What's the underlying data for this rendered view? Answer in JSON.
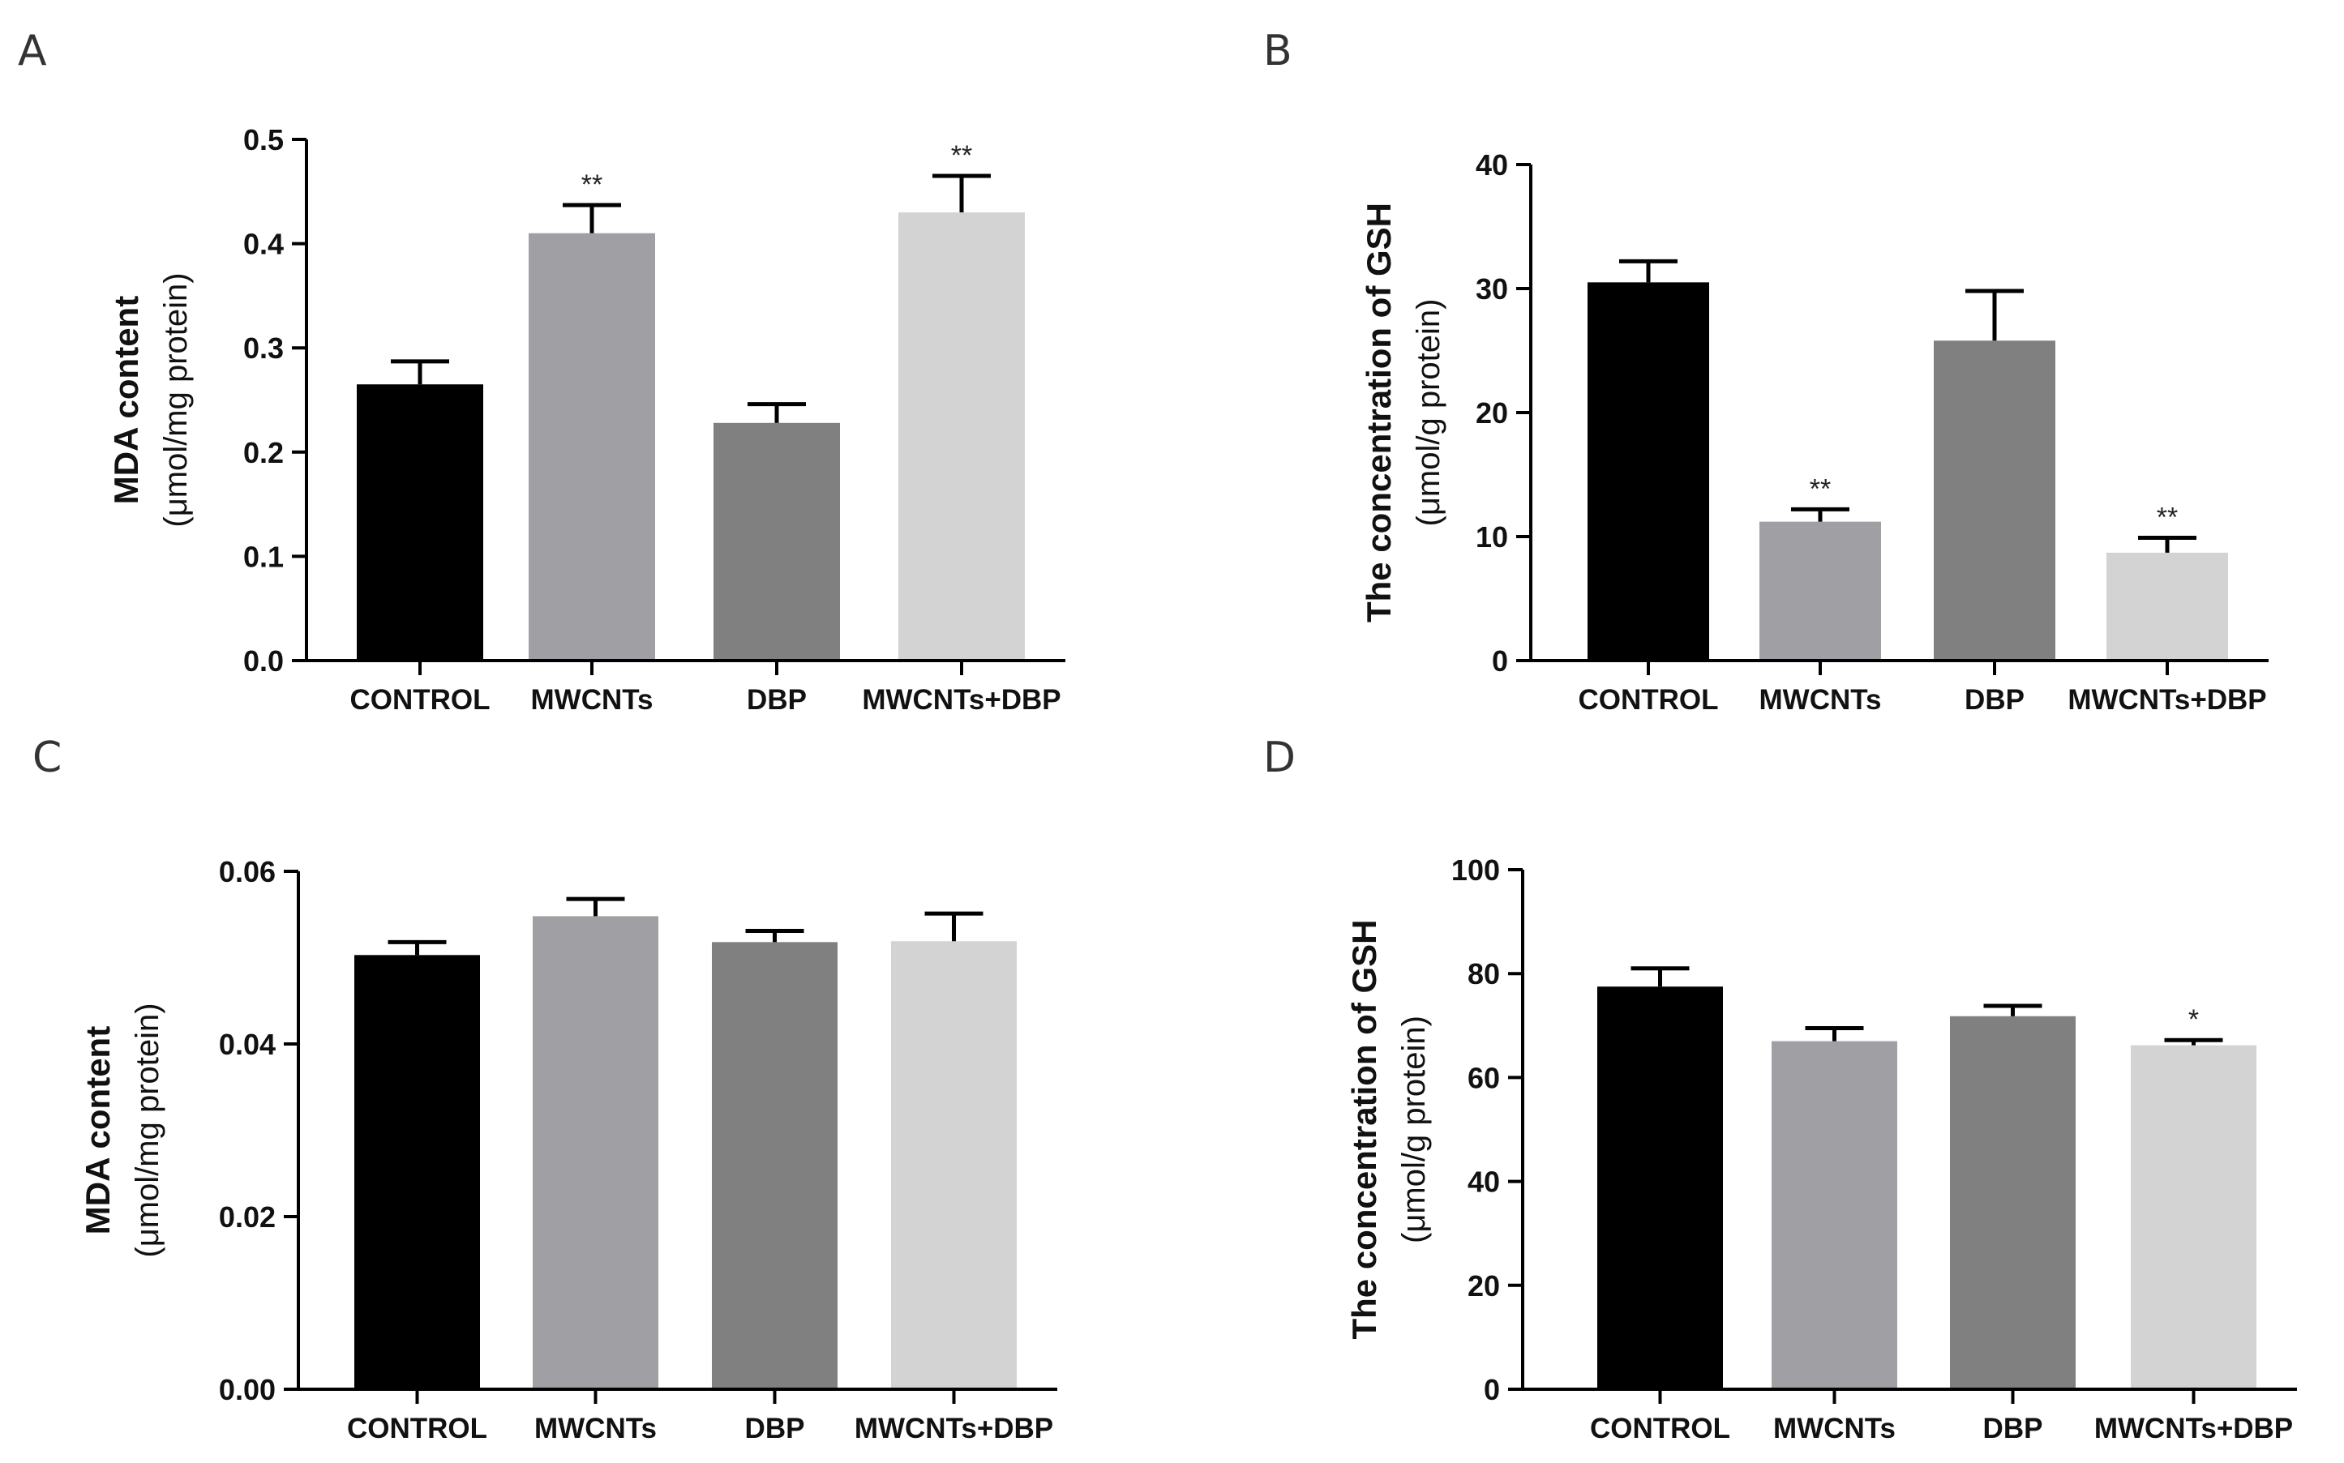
{
  "chart_data": [
    {
      "panel": "A",
      "type": "bar",
      "categories": [
        "CONTROL",
        "MWCNTs",
        "DBP",
        "MWCNTs+DBP"
      ],
      "values": [
        0.265,
        0.41,
        0.228,
        0.43
      ],
      "errors": [
        0.022,
        0.027,
        0.018,
        0.035
      ],
      "significance": [
        "",
        "**",
        "",
        "**"
      ],
      "bar_colors": [
        "#000000",
        "#a0a0a4",
        "#808080",
        "#d3d3d3"
      ],
      "ylabel": "MDA content",
      "ylabel_unit": "(μmol/mg protein)",
      "ylim": [
        0,
        0.5
      ],
      "yticks": [
        "0.0",
        "0.1",
        "0.2",
        "0.3",
        "0.4",
        "0.5"
      ]
    },
    {
      "panel": "B",
      "type": "bar",
      "categories": [
        "CONTROL",
        "MWCNTs",
        "DBP",
        "MWCNTs+DBP"
      ],
      "values": [
        30.5,
        11.2,
        25.8,
        8.7
      ],
      "errors": [
        1.7,
        1.0,
        4.0,
        1.2
      ],
      "significance": [
        "",
        "**",
        "",
        "**"
      ],
      "bar_colors": [
        "#000000",
        "#a0a0a4",
        "#808080",
        "#d3d3d3"
      ],
      "ylabel": "The concentration of GSH",
      "ylabel_unit": "(μmol/g protein)",
      "ylim": [
        0,
        40
      ],
      "yticks": [
        "0",
        "10",
        "20",
        "30",
        "40"
      ]
    },
    {
      "panel": "C",
      "type": "bar",
      "categories": [
        "CONTROL",
        "MWCNTs",
        "DBP",
        "MWCNTs+DBP"
      ],
      "values": [
        0.0503,
        0.0548,
        0.0518,
        0.0519
      ],
      "errors": [
        0.0015,
        0.002,
        0.0013,
        0.0032
      ],
      "significance": [
        "",
        "",
        "",
        ""
      ],
      "bar_colors": [
        "#000000",
        "#a0a0a4",
        "#808080",
        "#d3d3d3"
      ],
      "ylabel": "MDA content",
      "ylabel_unit": "(μmol/mg protein)",
      "ylim": [
        0,
        0.06
      ],
      "yticks": [
        "0.00",
        "0.02",
        "0.04",
        "0.06"
      ]
    },
    {
      "panel": "D",
      "type": "bar",
      "categories": [
        "CONTROL",
        "MWCNTs",
        "DBP",
        "MWCNTs+DBP"
      ],
      "values": [
        77.5,
        67.0,
        71.8,
        66.2
      ],
      "errors": [
        3.5,
        2.5,
        2.0,
        1.0
      ],
      "significance": [
        "",
        "",
        "",
        "*"
      ],
      "bar_colors": [
        "#000000",
        "#a0a0a4",
        "#808080",
        "#d3d3d3"
      ],
      "ylabel": "The concentration of GSH",
      "ylabel_unit": "(μmol/g protein)",
      "ylim": [
        0,
        100
      ],
      "yticks": [
        "0",
        "20",
        "40",
        "60",
        "80",
        "100"
      ]
    }
  ]
}
